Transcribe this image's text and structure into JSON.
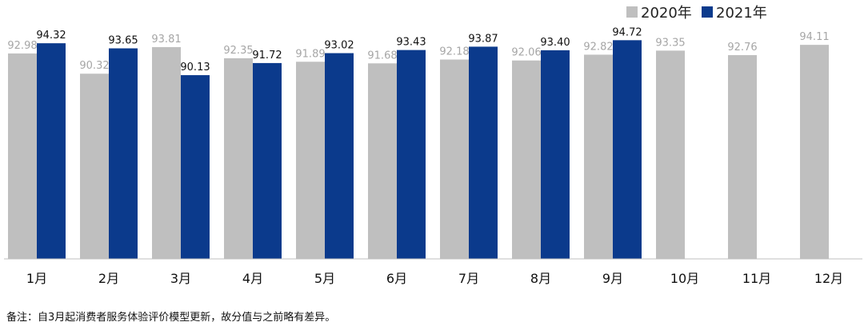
{
  "chart_data": {
    "type": "bar",
    "categories": [
      "1月",
      "2月",
      "3月",
      "4月",
      "5月",
      "6月",
      "7月",
      "8月",
      "9月",
      "10月",
      "11月",
      "12月"
    ],
    "series": [
      {
        "name": "2020年",
        "color": "#bfbfbf",
        "values": [
          92.98,
          90.32,
          93.81,
          92.35,
          91.89,
          91.68,
          92.18,
          92.06,
          92.82,
          93.35,
          92.76,
          94.11
        ]
      },
      {
        "name": "2021年",
        "color": "#0b3a8c",
        "values": [
          94.32,
          93.65,
          90.13,
          91.72,
          93.02,
          93.43,
          93.87,
          93.4,
          94.72,
          null,
          null,
          null
        ]
      }
    ],
    "ylim": [
      66,
      100
    ],
    "legend": "top-right",
    "grid": false
  },
  "note": "备注：自3月起消费者服务体验评价模型更新，故分值与之前略有差异。"
}
